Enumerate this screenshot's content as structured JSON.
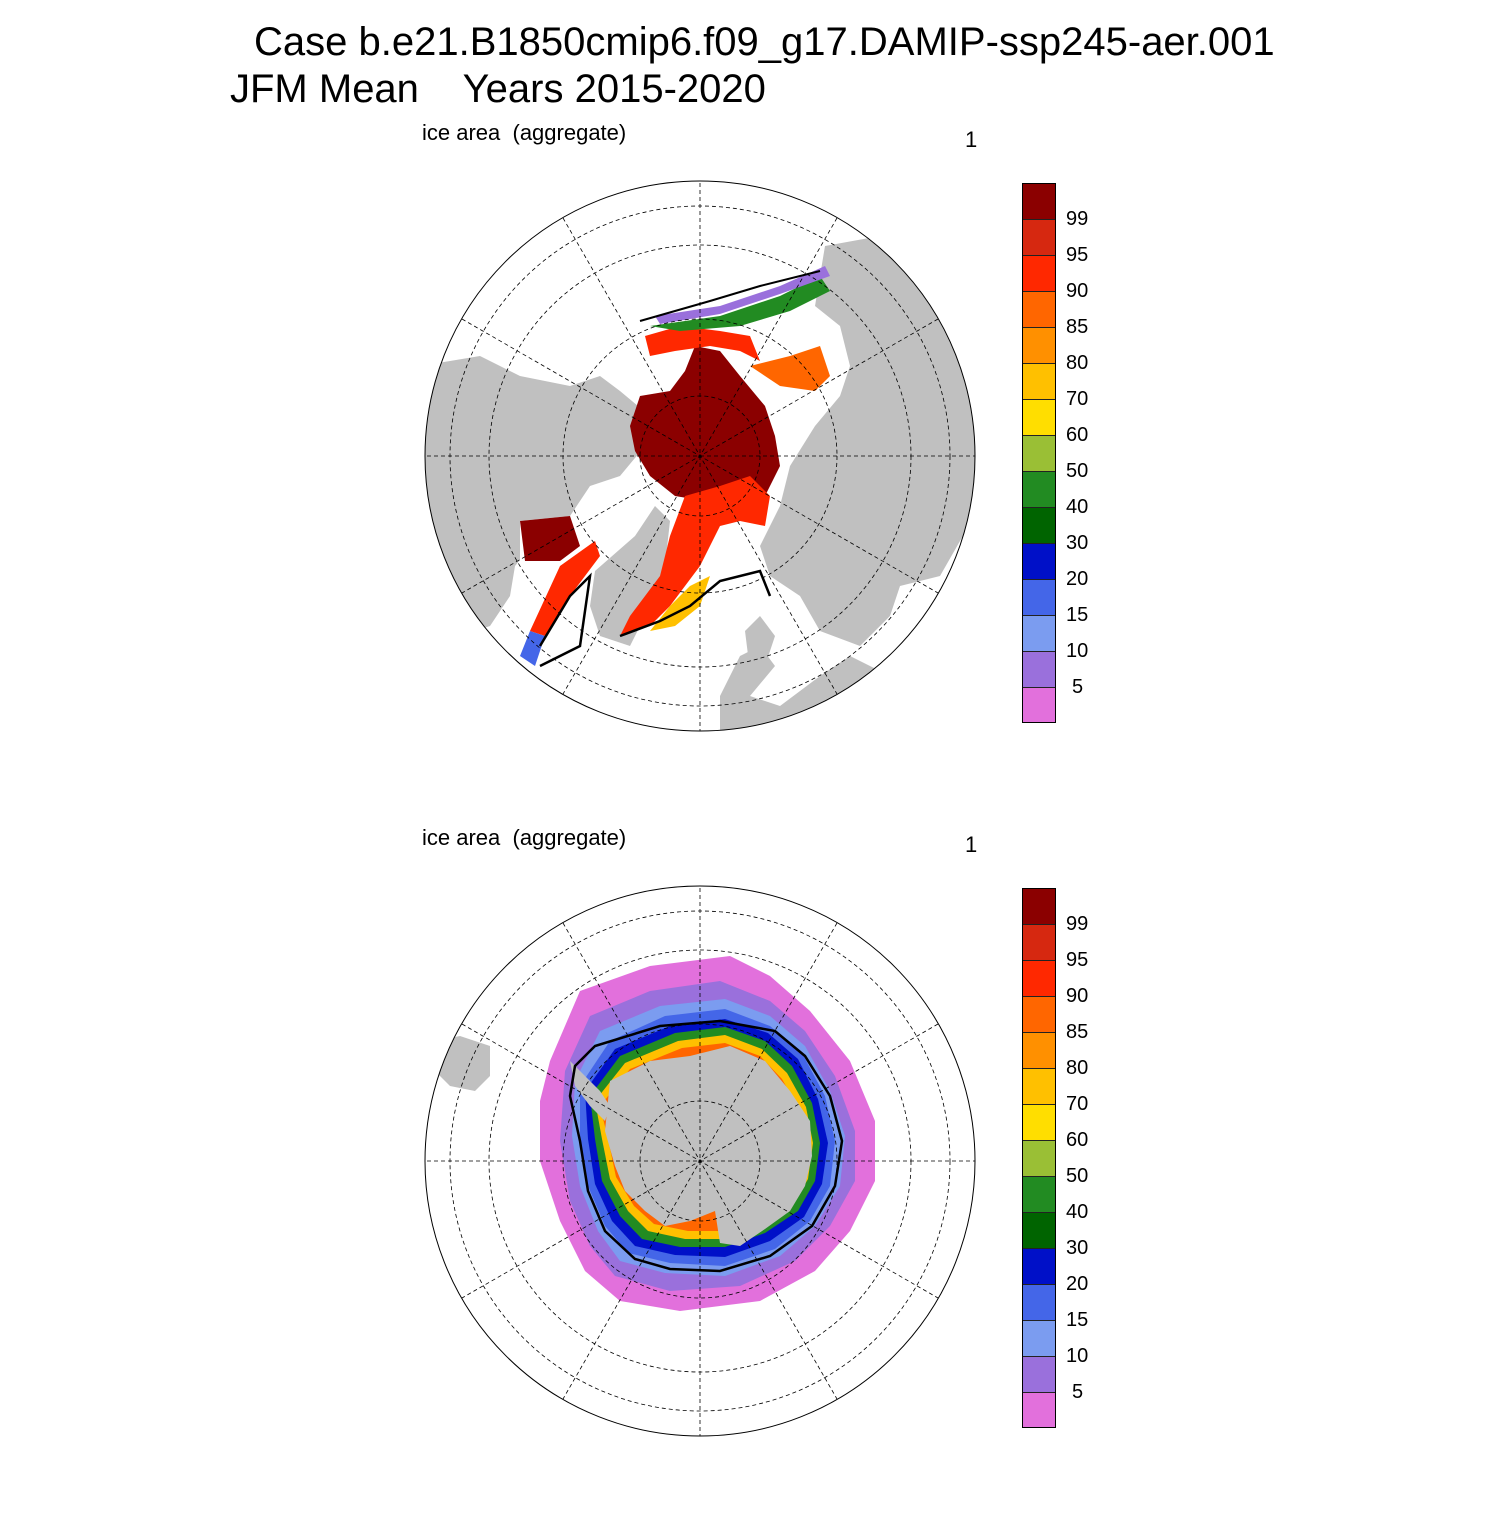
{
  "title": {
    "line1": "Case b.e21.B1850cmip6.f09_g17.DAMIP-ssp245-aer.001",
    "line2": "JFM Mean    Years 2015-2020"
  },
  "panels": [
    {
      "id": "north",
      "left_label": "ice area  (aggregate)",
      "right_label": "1",
      "hemisphere": "Arctic (north polar stereographic)"
    },
    {
      "id": "south",
      "left_label": "ice area  (aggregate)",
      "right_label": "1",
      "hemisphere": "Antarctic (south polar stereographic)"
    }
  ],
  "colorbar": {
    "levels": [
      "5",
      "10",
      "15",
      "20",
      "30",
      "40",
      "50",
      "60",
      "70",
      "80",
      "85",
      "90",
      "95",
      "99"
    ],
    "colors": [
      "#e270dc",
      "#9a70dc",
      "#7b9cf0",
      "#4466e8",
      "#0010c8",
      "#006400",
      "#228b22",
      "#9abf35",
      "#ffde00",
      "#ffc000",
      "#ff9000",
      "#ff6600",
      "#ff2800",
      "#d62810",
      "#8b0000"
    ]
  },
  "map_style": {
    "land": "#c0c0c0",
    "ocean": "#ffffff",
    "ice_edge_line": "#000000"
  }
}
